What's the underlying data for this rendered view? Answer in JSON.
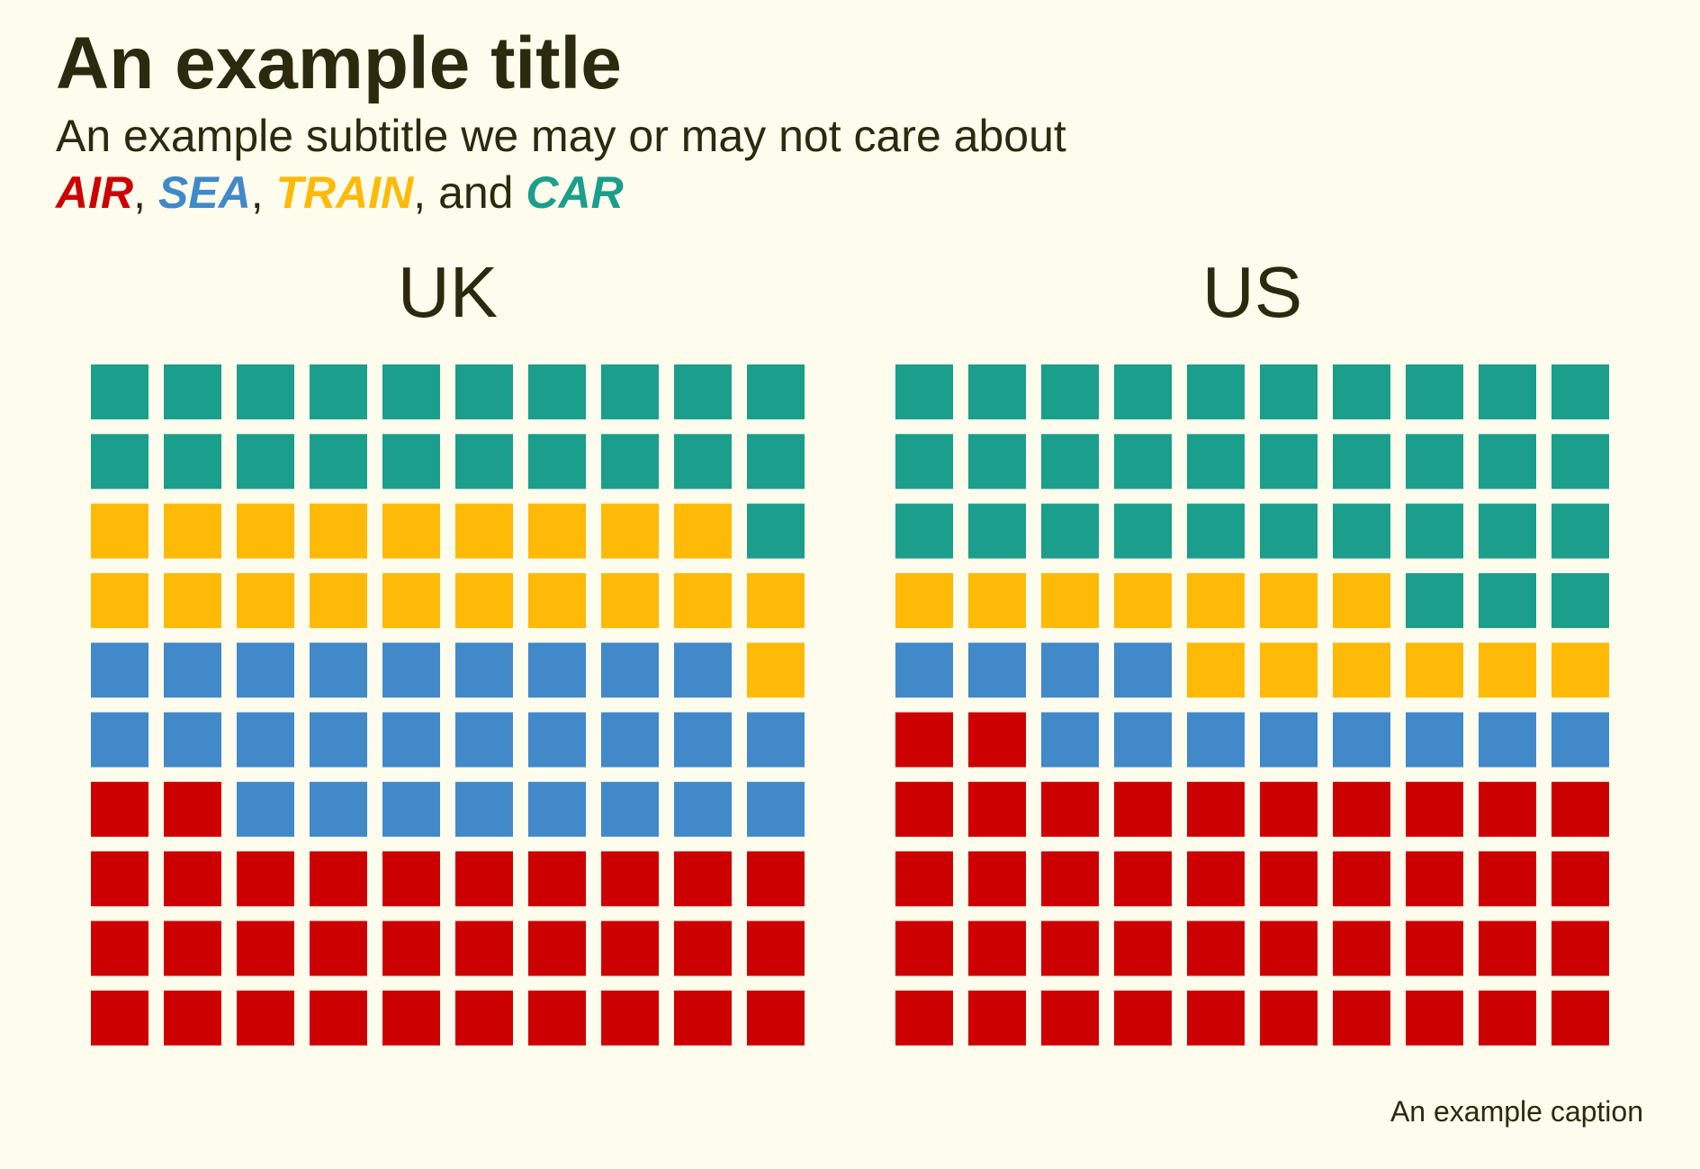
{
  "title": "An example title",
  "subtitle": "An example subtitle we may or may not care about",
  "legend_line": {
    "items": [
      {
        "label": "AIR",
        "color": "#cc0000"
      },
      {
        "label": "SEA",
        "color": "#4189c8"
      },
      {
        "label": "TRAIN",
        "color": "#ffba08"
      },
      {
        "label": "CAR",
        "color": "#1b9e8b"
      }
    ],
    "sep1": ", ",
    "sep2": ", ",
    "sep3": ", and "
  },
  "caption": "An example caption",
  "chart_data": {
    "type": "waffle",
    "grid": "10x10",
    "fill_order": "bottom-left, row by row",
    "categories": [
      "AIR",
      "SEA",
      "TRAIN",
      "CAR"
    ],
    "colors": [
      "#cc0000",
      "#4189c8",
      "#ffba08",
      "#1b9e8b"
    ],
    "panels": [
      {
        "label": "UK",
        "values": [
          32,
          27,
          20,
          21
        ]
      },
      {
        "label": "US",
        "values": [
          42,
          12,
          13,
          33
        ]
      }
    ]
  }
}
